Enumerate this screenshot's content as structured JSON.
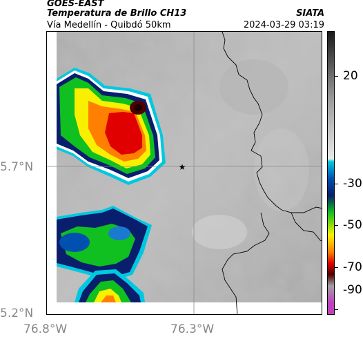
{
  "header": {
    "source": "GOES-EAST",
    "product": "Temperatura de Brillo CH13",
    "region": "Vía Medellín - Quibdó 50km",
    "institution": "SIATA",
    "datetime": "2024-03-29 03:19"
  },
  "axes": {
    "x_ticks": [
      {
        "lon": -76.8,
        "label": "76.8°W"
      },
      {
        "lon": -76.3,
        "label": "76.3°W"
      }
    ],
    "y_ticks": [
      {
        "lat": 5.7,
        "label": "5.7°N"
      },
      {
        "lat": 5.2,
        "label": "5.2°N"
      }
    ]
  },
  "colorbar": {
    "ticks": [
      {
        "value": 20,
        "label": "20"
      },
      {
        "value": -30,
        "label": "-30"
      },
      {
        "value": -50,
        "label": "-50"
      },
      {
        "value": -70,
        "label": "-70"
      },
      {
        "value": -90,
        "label": "-90"
      }
    ],
    "colors": {
      "warm_top": "#1a1a1a",
      "warm_mid": "#a0a0a0",
      "warm_low": "#e8e8e8",
      "cyan": "#00c8e0",
      "blue": "#0050b0",
      "navy": "#0a1e6e",
      "green": "#10c020",
      "yellow": "#f8f000",
      "orange": "#ff8000",
      "red": "#e00000",
      "darkred": "#500000",
      "magenta": "#c040c0"
    }
  },
  "markers": [
    {
      "name": "location-star",
      "lon": -76.35,
      "lat": 5.7
    }
  ]
}
